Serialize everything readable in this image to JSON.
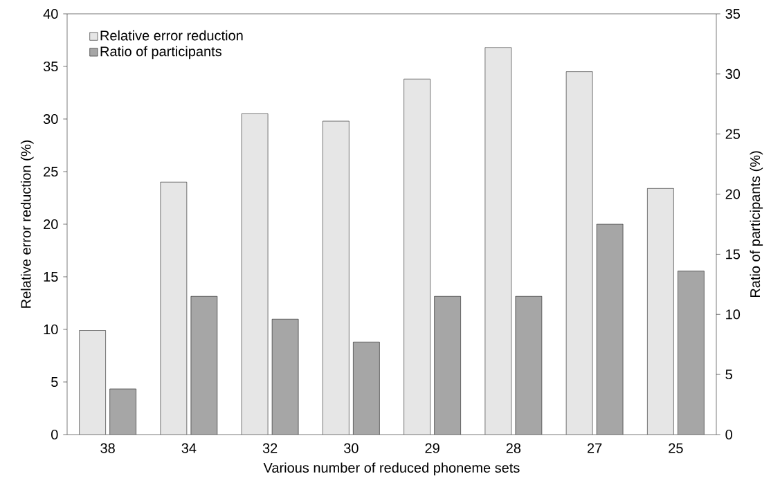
{
  "chart_data": {
    "type": "bar",
    "xlabel": "Various  number of reduced phoneme sets",
    "ylabel": "Relative error reduction (%)",
    "y2label": "Ratio of participants (%)",
    "categories": [
      "38",
      "34",
      "32",
      "30",
      "29",
      "28",
      "27",
      "25"
    ],
    "series": [
      {
        "name": "Relative error reduction",
        "color": "#e6e6e6",
        "values": [
          9.9,
          24.0,
          30.5,
          29.8,
          33.8,
          36.8,
          34.5,
          23.4
        ]
      },
      {
        "name": "Ratio of participants",
        "color": "#a6a6a6",
        "axis": "y2",
        "values": [
          3.8,
          11.5,
          9.6,
          7.7,
          11.5,
          11.5,
          17.5,
          13.6
        ]
      }
    ],
    "ylim": [
      0,
      40
    ],
    "yticks": [
      0,
      5,
      10,
      15,
      20,
      25,
      30,
      35,
      40
    ],
    "y2lim": [
      0,
      35
    ],
    "y2ticks": [
      0,
      5,
      10,
      15,
      20,
      25,
      30,
      35
    ],
    "legend": "top left",
    "grid": false
  }
}
